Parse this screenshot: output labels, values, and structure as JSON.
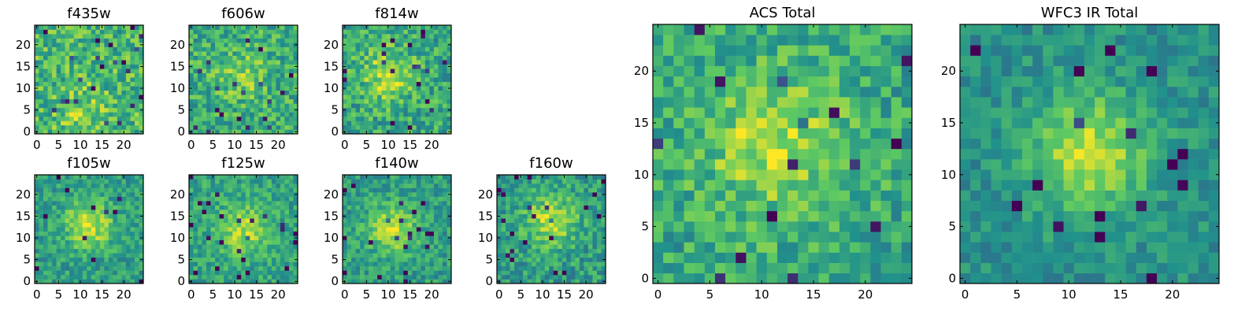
{
  "chart_data": [
    {
      "type": "heatmap",
      "title": "f435w",
      "xticks": [
        0,
        5,
        10,
        15,
        20
      ],
      "yticks": [
        0,
        5,
        10,
        15,
        20
      ],
      "xlim": [
        -0.5,
        24.5
      ],
      "ylim": [
        -0.5,
        24.5
      ],
      "colormap": "viridis",
      "blob": {
        "cx": 11,
        "cy": 5,
        "amp": 0.15,
        "sigma": 5
      },
      "noise": 0.22,
      "base": 0.65,
      "seed": 11
    },
    {
      "type": "heatmap",
      "title": "f606w",
      "xticks": [
        0,
        5,
        10,
        15,
        20
      ],
      "yticks": [
        0,
        5,
        10,
        15,
        20
      ],
      "xlim": [
        -0.5,
        24.5
      ],
      "ylim": [
        -0.5,
        24.5
      ],
      "colormap": "viridis",
      "blob": {
        "cx": 12,
        "cy": 13,
        "amp": 0.18,
        "sigma": 4
      },
      "noise": 0.2,
      "base": 0.62,
      "seed": 23
    },
    {
      "type": "heatmap",
      "title": "f814w",
      "xticks": [
        0,
        5,
        10,
        15,
        20
      ],
      "yticks": [
        0,
        5,
        10,
        15,
        20
      ],
      "xlim": [
        -0.5,
        24.5
      ],
      "ylim": [
        -0.5,
        24.5
      ],
      "colormap": "viridis",
      "blob": {
        "cx": 10,
        "cy": 13,
        "amp": 0.3,
        "sigma": 4
      },
      "noise": 0.2,
      "base": 0.6,
      "seed": 37
    },
    {
      "type": "heatmap",
      "title": "f105w",
      "xticks": [
        0,
        5,
        10,
        15,
        20
      ],
      "yticks": [
        0,
        5,
        10,
        15,
        20
      ],
      "xlim": [
        -0.5,
        24.5
      ],
      "ylim": [
        -0.5,
        24.5
      ],
      "colormap": "viridis",
      "blob": {
        "cx": 12,
        "cy": 13,
        "amp": 0.35,
        "sigma": 4
      },
      "noise": 0.15,
      "base": 0.55,
      "seed": 41
    },
    {
      "type": "heatmap",
      "title": "f125w",
      "xticks": [
        0,
        5,
        10,
        15,
        20
      ],
      "yticks": [
        0,
        5,
        10,
        15,
        20
      ],
      "xlim": [
        -0.5,
        24.5
      ],
      "ylim": [
        -0.5,
        24.5
      ],
      "colormap": "viridis",
      "blob": {
        "cx": 12,
        "cy": 12,
        "amp": 0.3,
        "sigma": 4
      },
      "noise": 0.15,
      "base": 0.58,
      "seed": 53
    },
    {
      "type": "heatmap",
      "title": "f140w",
      "xticks": [
        0,
        5,
        10,
        15,
        20
      ],
      "yticks": [
        0,
        5,
        10,
        15,
        20
      ],
      "xlim": [
        -0.5,
        24.5
      ],
      "ylim": [
        -0.5,
        24.5
      ],
      "colormap": "viridis",
      "blob": {
        "cx": 11,
        "cy": 12,
        "amp": 0.35,
        "sigma": 4
      },
      "noise": 0.15,
      "base": 0.55,
      "seed": 67
    },
    {
      "type": "heatmap",
      "title": "f160w",
      "xticks": [
        0,
        5,
        10,
        15,
        20
      ],
      "yticks": [
        0,
        5,
        10,
        15,
        20
      ],
      "xlim": [
        -0.5,
        24.5
      ],
      "ylim": [
        -0.5,
        24.5
      ],
      "colormap": "viridis",
      "blob": {
        "cx": 12,
        "cy": 14,
        "amp": 0.35,
        "sigma": 4
      },
      "noise": 0.17,
      "base": 0.55,
      "seed": 79
    },
    {
      "type": "heatmap",
      "title": "ACS Total",
      "xticks": [
        0,
        5,
        10,
        15,
        20
      ],
      "yticks": [
        0,
        5,
        10,
        15,
        20
      ],
      "xlim": [
        -0.5,
        24.5
      ],
      "ylim": [
        -0.5,
        24.5
      ],
      "colormap": "viridis",
      "blob": {
        "cx": 11,
        "cy": 13,
        "amp": 0.3,
        "sigma": 4.5
      },
      "noise": 0.18,
      "base": 0.6,
      "seed": 97
    },
    {
      "type": "heatmap",
      "title": "WFC3 IR Total",
      "xticks": [
        0,
        5,
        10,
        15,
        20
      ],
      "yticks": [
        0,
        5,
        10,
        15,
        20
      ],
      "xlim": [
        -0.5,
        24.5
      ],
      "ylim": [
        -0.5,
        24.5
      ],
      "colormap": "viridis",
      "blob": {
        "cx": 12,
        "cy": 12,
        "amp": 0.4,
        "sigma": 4
      },
      "noise": 0.12,
      "base": 0.5,
      "seed": 101
    }
  ],
  "colors": {
    "viridis": [
      "#440154",
      "#3b528b",
      "#21918c",
      "#5ec962",
      "#fde725"
    ]
  }
}
